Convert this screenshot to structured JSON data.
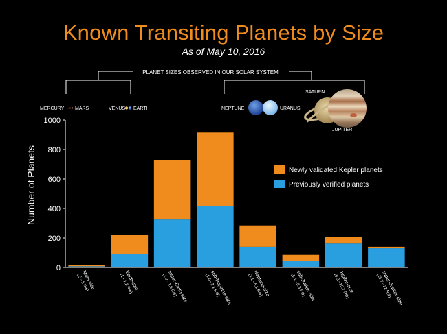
{
  "title": "Known Transiting Planets by Size",
  "subtitle": "As of May 10, 2016",
  "solar_system": {
    "bracket_label": "PLANET SIZES OBSERVED IN OUR SOLAR SYSTEM",
    "mercury_mars": "MERCURY",
    "mars": "MARS",
    "venus": "VENUS",
    "earth": "EARTH",
    "neptune": "NEPTUNE",
    "uranus": "URANUS",
    "saturn": "SATURN",
    "jupiter": "JUPITER"
  },
  "colors": {
    "new": "#f08c1e",
    "previous": "#2a9fe0",
    "title": "#f08c1e"
  },
  "chart_data": {
    "type": "bar",
    "stacked": true,
    "ylabel": "Number of Planets",
    "ylim": [
      0,
      1000
    ],
    "yticks": [
      0,
      200,
      400,
      600,
      800,
      1000
    ],
    "categories": [
      {
        "name": "Mars-size",
        "range": "(.5 - 1 R⊕)"
      },
      {
        "name": "Earth-size",
        "range": "(1 - 1.2 R⊕)"
      },
      {
        "name": "super-Earth-size",
        "range": "(1.2 - 1.6 R⊕)"
      },
      {
        "name": "sub-Neptune-size",
        "range": "(1.6 - 3.1 R⊕)"
      },
      {
        "name": "Neptune-size",
        "range": "(3.1 - 5.1 R⊕)"
      },
      {
        "name": "sub-Jupiter-size",
        "range": "(5.1 - 8.3 R⊕)"
      },
      {
        "name": "Jupiter-size",
        "range": "(8.3 - 15.7 R⊕)"
      },
      {
        "name": "super-Jupiter-size",
        "range": "(15.7 - 22 R⊕)"
      }
    ],
    "series": [
      {
        "name": "Previously verified planets",
        "color": "#2a9fe0",
        "values": [
          8,
          90,
          325,
          415,
          140,
          45,
          162,
          130
        ]
      },
      {
        "name": "Newly validated Kepler planets",
        "color": "#f08c1e",
        "values": [
          8,
          130,
          405,
          500,
          145,
          40,
          45,
          10
        ]
      }
    ],
    "legend": [
      "Newly validated Kepler planets",
      "Previously verified planets"
    ],
    "legend_position": "right"
  }
}
